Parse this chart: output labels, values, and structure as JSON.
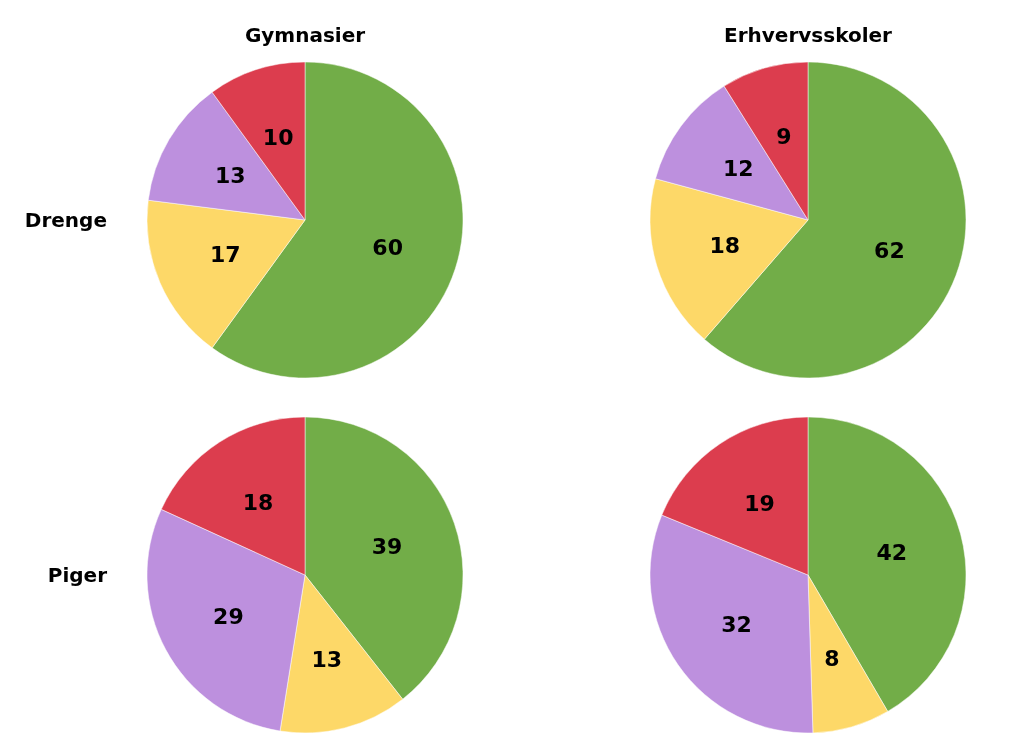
{
  "chart_data": [
    {
      "type": "pie",
      "title": "Gymnasier",
      "ylabel": "Drenge",
      "categories": [
        null,
        null,
        null,
        null
      ],
      "values": [
        60,
        17,
        13,
        10
      ],
      "colors": [
        "#72ad48",
        "#fdd868",
        "#bd90de",
        "#dc3d4e"
      ],
      "data_labels": true
    },
    {
      "type": "pie",
      "title": "Erhvervsskoler",
      "categories": [
        null,
        null,
        null,
        null
      ],
      "values": [
        62,
        18,
        12,
        9
      ],
      "colors": [
        "#72ad48",
        "#fdd868",
        "#bd90de",
        "#dc3d4e"
      ],
      "data_labels": true
    },
    {
      "type": "pie",
      "ylabel": "Piger",
      "categories": [
        null,
        null,
        null,
        null
      ],
      "values": [
        39,
        13,
        29,
        18
      ],
      "colors": [
        "#72ad48",
        "#fdd868",
        "#bd90de",
        "#dc3d4e"
      ],
      "data_labels": true
    },
    {
      "type": "pie",
      "categories": [
        null,
        null,
        null,
        null
      ],
      "values": [
        42,
        8,
        32,
        19
      ],
      "colors": [
        "#72ad48",
        "#fdd868",
        "#bd90de",
        "#dc3d4e"
      ],
      "data_labels": true
    }
  ]
}
